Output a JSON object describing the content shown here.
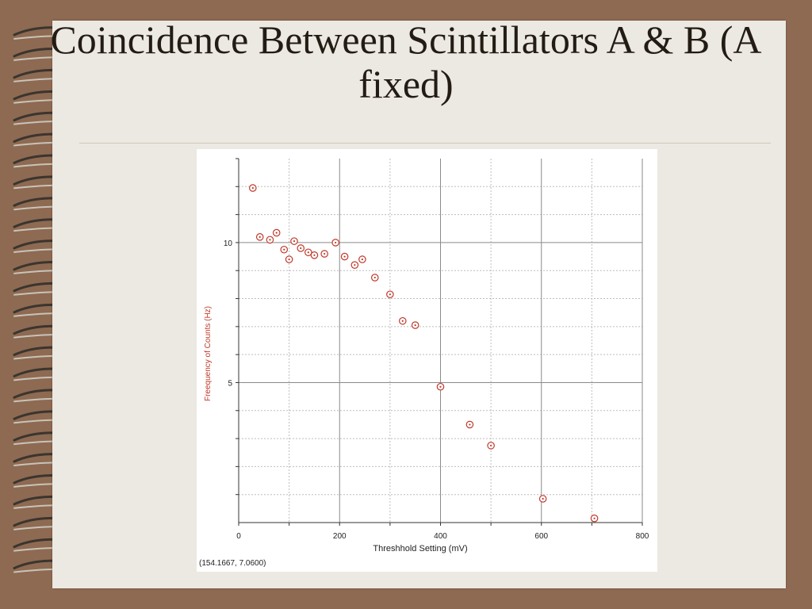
{
  "slide": {
    "title": "Coincidence Between Scintillators A & B (A fixed)",
    "background_color": "#8e6a52",
    "paper_color": "#ece8e2",
    "binding_icon": "spiral-binding-icon"
  },
  "chart_data": {
    "type": "scatter",
    "xlabel": "Threshhold Setting (mV)",
    "ylabel": "Freequency of Counts (Hz)",
    "x_ticks": [
      0,
      200,
      400,
      600,
      800
    ],
    "y_ticks": [
      5,
      10
    ],
    "xlim": [
      0,
      800
    ],
    "ylim": [
      0,
      13
    ],
    "grid": true,
    "marker_color": "#c0392b",
    "axis_label_color": "#c0392b",
    "x": [
      28,
      42,
      62,
      75,
      90,
      100,
      110,
      123,
      138,
      150,
      170,
      192,
      210,
      230,
      245,
      270,
      300,
      325,
      350,
      400,
      458,
      500,
      603,
      705
    ],
    "y": [
      11.95,
      10.2,
      10.1,
      10.35,
      9.75,
      9.4,
      10.05,
      9.8,
      9.65,
      9.55,
      9.6,
      10.0,
      9.5,
      9.2,
      9.4,
      8.75,
      8.15,
      7.2,
      7.05,
      4.85,
      3.5,
      2.75,
      0.85,
      0.15
    ],
    "cursor_readout": "(154.1667, 7.0600)"
  }
}
